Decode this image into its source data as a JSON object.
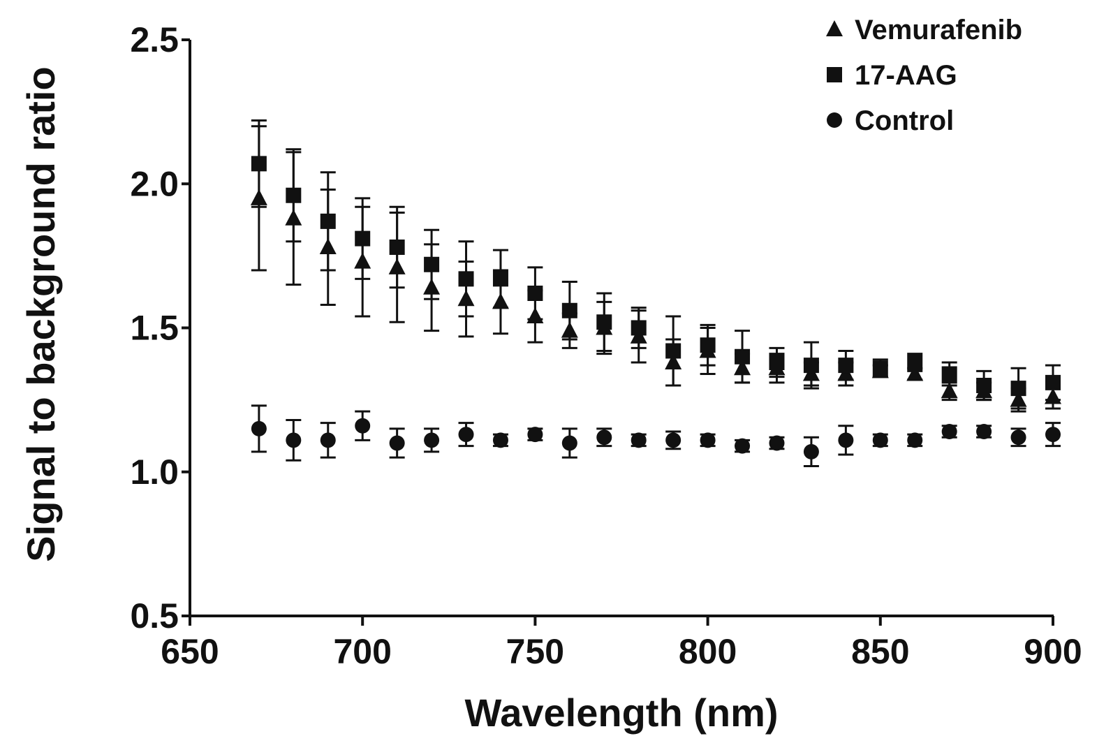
{
  "chart_data": {
    "type": "scatter",
    "xlabel": "Wavelength (nm)",
    "ylabel": "Signal to background ratio",
    "xlim": [
      650,
      900
    ],
    "ylim": [
      0.5,
      2.5
    ],
    "x_ticks": [
      "650",
      "700",
      "750",
      "800",
      "850",
      "900"
    ],
    "y_ticks": [
      "0.5",
      "1.0",
      "1.5",
      "2.0",
      "2.5"
    ],
    "legend_position": "top-right",
    "marker_color": "#111111",
    "x": [
      670,
      680,
      690,
      700,
      710,
      720,
      730,
      740,
      750,
      760,
      770,
      780,
      790,
      800,
      810,
      820,
      830,
      840,
      850,
      860,
      870,
      880,
      890,
      900
    ],
    "series": [
      {
        "name": "Vemurafenib",
        "marker": "triangle",
        "values": [
          1.95,
          1.88,
          1.78,
          1.73,
          1.71,
          1.64,
          1.6,
          1.59,
          1.54,
          1.49,
          1.5,
          1.47,
          1.38,
          1.42,
          1.36,
          1.36,
          1.34,
          1.34,
          1.35,
          1.34,
          1.28,
          1.28,
          1.25,
          1.26
        ],
        "errors": [
          0.25,
          0.23,
          0.2,
          0.19,
          0.19,
          0.15,
          0.13,
          0.11,
          0.09,
          0.06,
          0.09,
          0.09,
          0.08,
          0.08,
          0.05,
          0.05,
          0.04,
          0.04,
          0.02,
          0.02,
          0.03,
          0.03,
          0.04,
          0.04
        ]
      },
      {
        "name": "17-AAG",
        "marker": "square",
        "values": [
          2.07,
          1.96,
          1.87,
          1.81,
          1.78,
          1.72,
          1.67,
          1.67,
          1.62,
          1.56,
          1.52,
          1.5,
          1.42,
          1.44,
          1.4,
          1.38,
          1.37,
          1.37,
          1.36,
          1.38,
          1.34,
          1.3,
          1.29,
          1.31
        ],
        "errors": [
          0.15,
          0.16,
          0.17,
          0.14,
          0.14,
          0.12,
          0.13,
          0.1,
          0.09,
          0.1,
          0.1,
          0.07,
          0.12,
          0.07,
          0.09,
          0.05,
          0.08,
          0.05,
          0.03,
          0.03,
          0.04,
          0.05,
          0.07,
          0.06
        ]
      },
      {
        "name": "Control",
        "marker": "circle",
        "values": [
          1.15,
          1.11,
          1.11,
          1.16,
          1.1,
          1.11,
          1.13,
          1.11,
          1.13,
          1.1,
          1.12,
          1.11,
          1.11,
          1.11,
          1.09,
          1.1,
          1.07,
          1.11,
          1.11,
          1.11,
          1.14,
          1.14,
          1.12,
          1.13
        ],
        "errors": [
          0.08,
          0.07,
          0.06,
          0.05,
          0.05,
          0.04,
          0.04,
          0.02,
          0.02,
          0.05,
          0.03,
          0.02,
          0.03,
          0.02,
          0.02,
          0.02,
          0.05,
          0.05,
          0.02,
          0.02,
          0.02,
          0.02,
          0.03,
          0.04
        ]
      }
    ]
  }
}
